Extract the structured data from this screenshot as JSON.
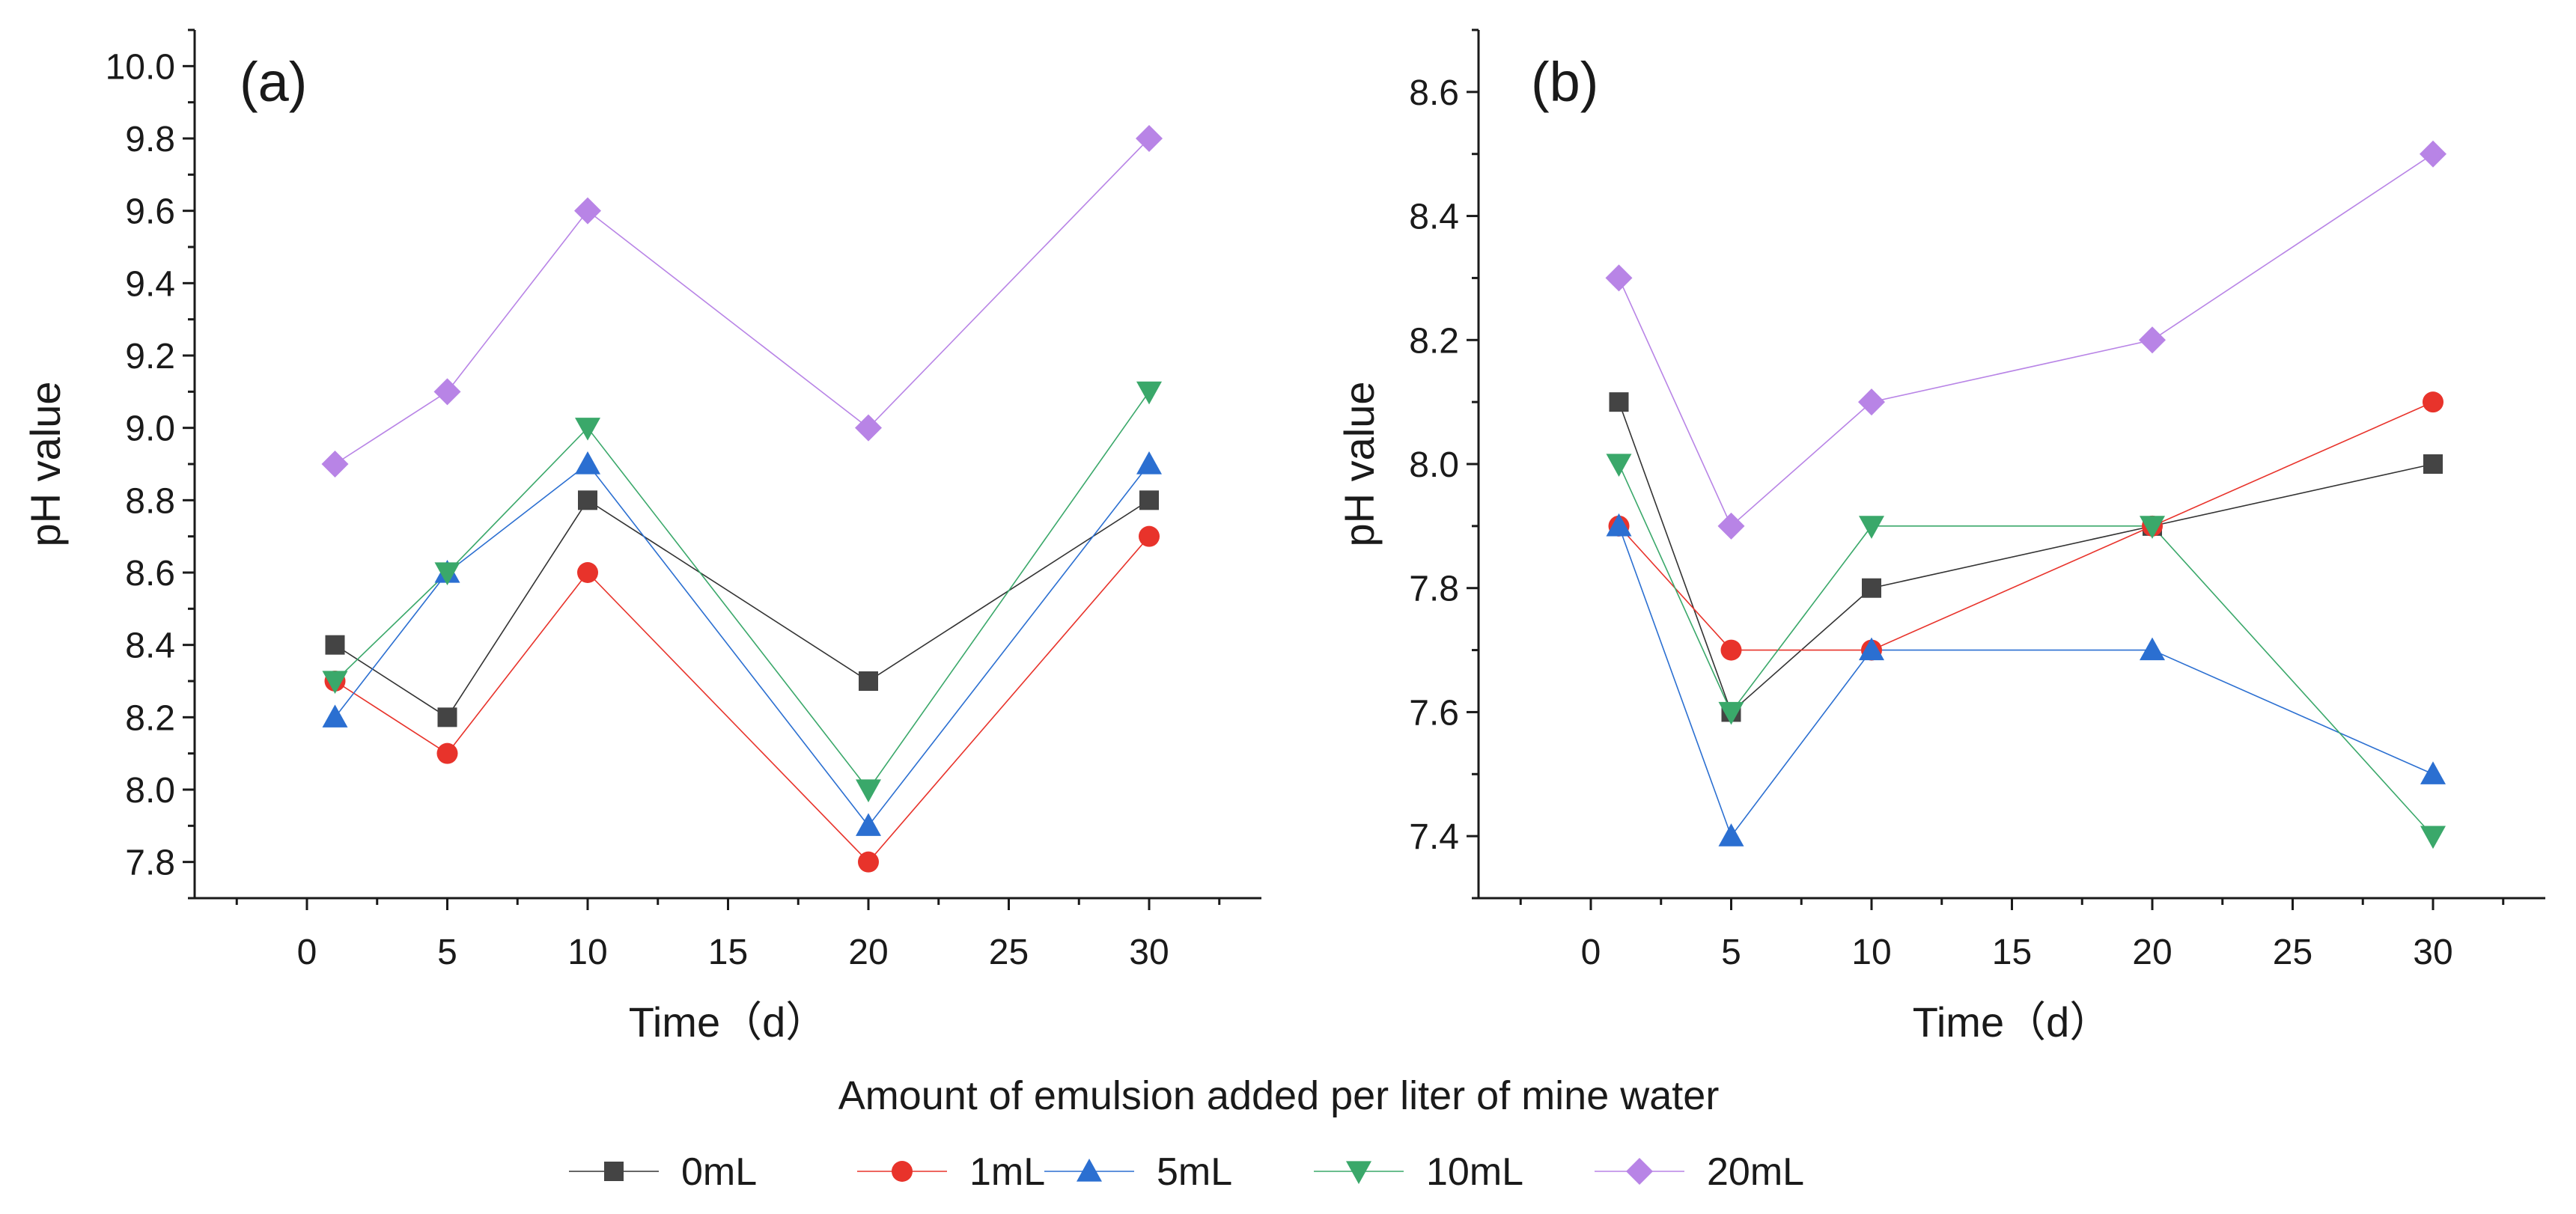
{
  "chart_data": [
    {
      "type": "line",
      "panel_label": "(a)",
      "xlabel": "Time（d）",
      "ylabel": "pH value",
      "xlim": [
        -4,
        34
      ],
      "ylim": [
        7.7,
        10.1
      ],
      "x_ticks": [
        0,
        5,
        10,
        15,
        20,
        25,
        30
      ],
      "y_ticks": [
        7.8,
        8.0,
        8.2,
        8.4,
        8.6,
        8.8,
        9.0,
        9.2,
        9.4,
        9.6,
        9.8,
        10.0
      ],
      "x_tick_labels": [
        "0",
        "5",
        "10",
        "15",
        "20",
        "25",
        "30"
      ],
      "y_tick_labels": [
        "7.8",
        "8.0",
        "8.2",
        "8.4",
        "8.6",
        "8.8",
        "9.0",
        "9.2",
        "9.4",
        "9.6",
        "9.8",
        "10.0"
      ],
      "x": [
        1,
        5,
        10,
        20,
        30
      ],
      "series": [
        {
          "name": "0mL",
          "values": [
            8.4,
            8.2,
            8.8,
            8.3,
            8.8
          ]
        },
        {
          "name": "1mL",
          "values": [
            8.3,
            8.1,
            8.6,
            7.8,
            8.7
          ]
        },
        {
          "name": "5mL",
          "values": [
            8.2,
            8.6,
            8.9,
            7.9,
            8.9
          ]
        },
        {
          "name": "10mL",
          "values": [
            8.3,
            8.6,
            9.0,
            8.0,
            9.1
          ]
        },
        {
          "name": "20mL",
          "values": [
            8.9,
            9.1,
            9.6,
            9.0,
            9.8
          ]
        }
      ]
    },
    {
      "type": "line",
      "panel_label": "(b)",
      "xlabel": "Time（d）",
      "ylabel": "pH value",
      "xlim": [
        -4,
        34
      ],
      "ylim": [
        7.3,
        8.7
      ],
      "x_ticks": [
        0,
        5,
        10,
        15,
        20,
        25,
        30
      ],
      "y_ticks": [
        7.4,
        7.6,
        7.8,
        8.0,
        8.2,
        8.4,
        8.6
      ],
      "x_tick_labels": [
        "0",
        "5",
        "10",
        "15",
        "20",
        "25",
        "30"
      ],
      "y_tick_labels": [
        "7.4",
        "7.6",
        "7.8",
        "8.0",
        "8.2",
        "8.4",
        "8.6"
      ],
      "x": [
        1,
        5,
        10,
        20,
        30
      ],
      "series": [
        {
          "name": "0mL",
          "values": [
            8.1,
            7.6,
            7.8,
            7.9,
            8.0
          ]
        },
        {
          "name": "1mL",
          "values": [
            7.9,
            7.7,
            7.7,
            7.9,
            8.1
          ]
        },
        {
          "name": "5mL",
          "values": [
            7.9,
            7.4,
            7.7,
            7.7,
            7.5
          ]
        },
        {
          "name": "10mL",
          "values": [
            8.0,
            7.6,
            7.9,
            7.9,
            7.4
          ]
        },
        {
          "name": "20mL",
          "values": [
            8.3,
            7.9,
            8.1,
            8.2,
            8.5
          ]
        }
      ]
    }
  ],
  "legend": {
    "title": "Amount of emulsion added per liter of mine water",
    "items": [
      {
        "label": "0mL",
        "color": "#444444",
        "line_color": "#333333",
        "marker": "square"
      },
      {
        "label": "1mL",
        "color": "#e8332b",
        "line_color": "#e8332b",
        "marker": "circle"
      },
      {
        "label": "5mL",
        "color": "#2b6fd1",
        "line_color": "#2b6fd1",
        "marker": "triangle-up"
      },
      {
        "label": "10mL",
        "color": "#3aa86a",
        "line_color": "#3aa86a",
        "marker": "triangle-down"
      },
      {
        "label": "20mL",
        "color": "#b884e6",
        "line_color": "#b884e6",
        "marker": "diamond"
      }
    ]
  }
}
